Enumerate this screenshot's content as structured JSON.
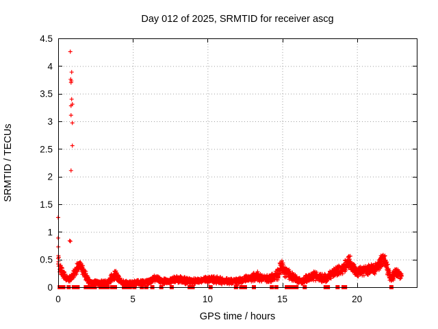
{
  "colors": {
    "series": "#ff0000",
    "grid": "#9e9e9e",
    "axis": "#000000",
    "text": "#000000",
    "background": "#ffffff"
  },
  "chart_data": {
    "type": "scatter",
    "title": "Day 012 of 2025, SRMTID for receiver ascg",
    "xlabel": "GPS time / hours",
    "ylabel": "SRMTID / TECUs",
    "xlim": [
      0,
      24
    ],
    "ylim": [
      0,
      4.5
    ],
    "xticks": [
      0,
      5,
      10,
      15,
      20
    ],
    "yticks": [
      0,
      0.5,
      1,
      1.5,
      2,
      2.5,
      3,
      3.5,
      4,
      4.5
    ],
    "grid": true,
    "legend": "none",
    "marker": "plus",
    "marker_color": "#ff0000",
    "zero_marker": "filled-square",
    "points_per_hour": 110,
    "x_data_end": 23.0,
    "outlier_points": [
      [
        0.0,
        1.26
      ],
      [
        0.0,
        0.89
      ],
      [
        0.01,
        0.73
      ],
      [
        0.02,
        0.57
      ],
      [
        0.04,
        0.54
      ],
      [
        0.0,
        0.52
      ],
      [
        0.02,
        0.46
      ],
      [
        0.0,
        0.42
      ],
      [
        0.03,
        0.38
      ],
      [
        0.81,
        4.26
      ],
      [
        0.9,
        3.89
      ],
      [
        0.84,
        3.76
      ],
      [
        0.88,
        3.73
      ],
      [
        0.86,
        3.7
      ],
      [
        0.9,
        3.4
      ],
      [
        0.95,
        3.31
      ],
      [
        0.86,
        3.28
      ],
      [
        0.86,
        3.11
      ],
      [
        0.95,
        2.97
      ],
      [
        0.95,
        2.56
      ],
      [
        0.86,
        2.11
      ],
      [
        0.77,
        0.84
      ],
      [
        0.82,
        0.83
      ]
    ],
    "band_profile_x_mean_spread": [
      [
        0.1,
        0.34,
        0.1
      ],
      [
        0.3,
        0.26,
        0.08
      ],
      [
        0.5,
        0.17,
        0.06
      ],
      [
        0.7,
        0.14,
        0.05
      ],
      [
        0.9,
        0.17,
        0.07
      ],
      [
        1.1,
        0.24,
        0.09
      ],
      [
        1.3,
        0.36,
        0.1
      ],
      [
        1.45,
        0.42,
        0.08
      ],
      [
        1.6,
        0.34,
        0.1
      ],
      [
        1.8,
        0.22,
        0.08
      ],
      [
        2.0,
        0.13,
        0.06
      ],
      [
        2.3,
        0.08,
        0.05
      ],
      [
        2.7,
        0.07,
        0.04
      ],
      [
        3.0,
        0.08,
        0.05
      ],
      [
        3.3,
        0.08,
        0.05
      ],
      [
        3.6,
        0.16,
        0.08
      ],
      [
        3.85,
        0.24,
        0.08
      ],
      [
        4.1,
        0.15,
        0.07
      ],
      [
        4.3,
        0.08,
        0.05
      ],
      [
        4.7,
        0.07,
        0.04
      ],
      [
        5.2,
        0.08,
        0.04
      ],
      [
        5.7,
        0.09,
        0.05
      ],
      [
        6.1,
        0.1,
        0.05
      ],
      [
        6.4,
        0.16,
        0.07
      ],
      [
        6.7,
        0.14,
        0.06
      ],
      [
        7.0,
        0.11,
        0.05
      ],
      [
        7.4,
        0.11,
        0.05
      ],
      [
        7.8,
        0.14,
        0.06
      ],
      [
        8.2,
        0.14,
        0.06
      ],
      [
        8.6,
        0.12,
        0.06
      ],
      [
        9.0,
        0.1,
        0.05
      ],
      [
        9.4,
        0.11,
        0.05
      ],
      [
        9.8,
        0.13,
        0.06
      ],
      [
        10.2,
        0.14,
        0.06
      ],
      [
        10.6,
        0.13,
        0.06
      ],
      [
        11.0,
        0.12,
        0.06
      ],
      [
        11.4,
        0.12,
        0.06
      ],
      [
        11.8,
        0.1,
        0.05
      ],
      [
        12.2,
        0.12,
        0.06
      ],
      [
        12.6,
        0.15,
        0.06
      ],
      [
        13.0,
        0.17,
        0.07
      ],
      [
        13.3,
        0.2,
        0.08
      ],
      [
        13.6,
        0.16,
        0.07
      ],
      [
        14.0,
        0.15,
        0.07
      ],
      [
        14.4,
        0.18,
        0.07
      ],
      [
        14.7,
        0.23,
        0.09
      ],
      [
        14.95,
        0.38,
        0.13
      ],
      [
        15.15,
        0.3,
        0.11
      ],
      [
        15.45,
        0.24,
        0.09
      ],
      [
        15.75,
        0.17,
        0.07
      ],
      [
        16.05,
        0.13,
        0.06
      ],
      [
        16.35,
        0.1,
        0.05
      ],
      [
        16.65,
        0.16,
        0.07
      ],
      [
        16.95,
        0.19,
        0.08
      ],
      [
        17.25,
        0.21,
        0.08
      ],
      [
        17.55,
        0.17,
        0.07
      ],
      [
        17.85,
        0.16,
        0.07
      ],
      [
        18.15,
        0.22,
        0.08
      ],
      [
        18.45,
        0.26,
        0.09
      ],
      [
        18.75,
        0.31,
        0.09
      ],
      [
        19.05,
        0.33,
        0.1
      ],
      [
        19.3,
        0.4,
        0.11
      ],
      [
        19.5,
        0.47,
        0.11
      ],
      [
        19.7,
        0.36,
        0.1
      ],
      [
        19.95,
        0.27,
        0.09
      ],
      [
        20.25,
        0.29,
        0.08
      ],
      [
        20.55,
        0.31,
        0.08
      ],
      [
        20.85,
        0.31,
        0.08
      ],
      [
        21.15,
        0.33,
        0.09
      ],
      [
        21.45,
        0.4,
        0.11
      ],
      [
        21.7,
        0.5,
        0.13
      ],
      [
        21.9,
        0.46,
        0.13
      ],
      [
        22.1,
        0.28,
        0.1
      ],
      [
        22.25,
        0.17,
        0.07
      ],
      [
        22.45,
        0.22,
        0.08
      ],
      [
        22.65,
        0.26,
        0.09
      ],
      [
        22.85,
        0.22,
        0.08
      ],
      [
        23.0,
        0.2,
        0.06
      ]
    ],
    "zero_marker_x": [
      0.1,
      0.22,
      0.35,
      0.7,
      1.05,
      1.15,
      1.3,
      1.85,
      2.05,
      2.25,
      2.45,
      2.85,
      3.1,
      3.3,
      3.6,
      3.8,
      4.4,
      4.6,
      4.8,
      5.1,
      5.6,
      5.9,
      6.3,
      6.9,
      7.6,
      8.8,
      9.0,
      10.2,
      11.9,
      12.25,
      12.5,
      13.1,
      14.3,
      14.6,
      15.3,
      15.55,
      15.8,
      15.95,
      16.5,
      17.9,
      18.05,
      18.7,
      19.1,
      19.2,
      22.3
    ]
  }
}
